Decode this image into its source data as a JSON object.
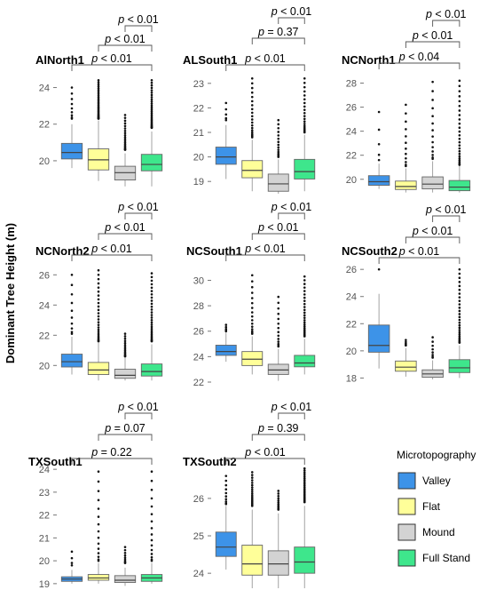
{
  "y_axis_title": "Dominant Tree Height (m)",
  "legend": {
    "title": "Microtopography",
    "items": [
      {
        "label": "Valley",
        "color": "#3d93e8"
      },
      {
        "label": "Flat",
        "color": "#ffff99"
      },
      {
        "label": "Mound",
        "color": "#d3d3d3"
      },
      {
        "label": "Full Stand",
        "color": "#3ee68c"
      }
    ]
  },
  "chart_data": [
    {
      "type": "box",
      "title": "AlNorth1",
      "ylim": [
        18.2,
        24.9
      ],
      "yticks": [
        20,
        22,
        24
      ],
      "comparisons": [
        {
          "pair": [
            "Mound",
            "Full Stand"
          ],
          "label": "p < 0.01"
        },
        {
          "pair": [
            "Flat",
            "Full Stand"
          ],
          "label": "p < 0.01"
        },
        {
          "pair": [
            "Valley",
            "Full Stand"
          ],
          "label": "p < 0.01"
        }
      ],
      "series": [
        {
          "name": "Valley",
          "q1": 20.1,
          "median": 20.45,
          "q3": 20.95,
          "wlow": 19.6,
          "whigh": 22.0,
          "outlier_min": 22.3,
          "outlier_max": 24.0,
          "outlier_count": 9
        },
        {
          "name": "Flat",
          "q1": 19.5,
          "median": 20.05,
          "q3": 20.65,
          "wlow": 18.9,
          "whigh": 22.2,
          "outlier_min": 22.3,
          "outlier_max": 24.4,
          "outlier_count": 30
        },
        {
          "name": "Mound",
          "q1": 18.95,
          "median": 19.35,
          "q3": 19.7,
          "wlow": 18.6,
          "whigh": 20.4,
          "outlier_min": 20.6,
          "outlier_max": 22.5,
          "outlier_count": 20
        },
        {
          "name": "Full Stand",
          "q1": 19.45,
          "median": 19.8,
          "q3": 20.35,
          "wlow": 18.6,
          "whigh": 21.6,
          "outlier_min": 21.8,
          "outlier_max": 24.4,
          "outlier_count": 30
        }
      ]
    },
    {
      "type": "box",
      "title": "ALSouth1",
      "ylim": [
        18.5,
        23.5
      ],
      "yticks": [
        19,
        20,
        21,
        22,
        23
      ],
      "comparisons": [
        {
          "pair": [
            "Mound",
            "Full Stand"
          ],
          "label": "p < 0.01"
        },
        {
          "pair": [
            "Flat",
            "Full Stand"
          ],
          "label": "p = 0.37"
        },
        {
          "pair": [
            "Valley",
            "Full Stand"
          ],
          "label": "p < 0.01"
        }
      ],
      "series": [
        {
          "name": "Valley",
          "q1": 19.7,
          "median": 20.0,
          "q3": 20.4,
          "wlow": 19.1,
          "whigh": 21.3,
          "outlier_min": 21.5,
          "outlier_max": 22.2,
          "outlier_count": 5
        },
        {
          "name": "Flat",
          "q1": 19.15,
          "median": 19.45,
          "q3": 19.85,
          "wlow": 18.6,
          "whigh": 20.7,
          "outlier_min": 20.8,
          "outlier_max": 23.2,
          "outlier_count": 20
        },
        {
          "name": "Mound",
          "q1": 18.6,
          "median": 18.9,
          "q3": 19.3,
          "wlow": 18.5,
          "whigh": 19.9,
          "outlier_min": 20.0,
          "outlier_max": 21.5,
          "outlier_count": 15
        },
        {
          "name": "Full Stand",
          "q1": 19.1,
          "median": 19.4,
          "q3": 19.9,
          "wlow": 18.6,
          "whigh": 20.9,
          "outlier_min": 21.0,
          "outlier_max": 23.2,
          "outlier_count": 20
        }
      ]
    },
    {
      "type": "box",
      "title": "NCNorth1",
      "ylim": [
        18.8,
        29.0
      ],
      "yticks": [
        20,
        22,
        24,
        26,
        28
      ],
      "comparisons": [
        {
          "pair": [
            "Mound",
            "Full Stand"
          ],
          "label": "p < 0.01"
        },
        {
          "pair": [
            "Flat",
            "Full Stand"
          ],
          "label": "p < 0.01"
        },
        {
          "pair": [
            "Valley",
            "Full Stand"
          ],
          "label": "p < 0.04"
        }
      ],
      "series": [
        {
          "name": "Valley",
          "q1": 19.5,
          "median": 19.8,
          "q3": 20.3,
          "wlow": 19.2,
          "whigh": 21.3,
          "outlier_min": 21.6,
          "outlier_max": 25.6,
          "outlier_count": 5
        },
        {
          "name": "Flat",
          "q1": 19.15,
          "median": 19.4,
          "q3": 19.85,
          "wlow": 18.9,
          "whigh": 20.9,
          "outlier_min": 21.1,
          "outlier_max": 26.2,
          "outlier_count": 12
        },
        {
          "name": "Mound",
          "q1": 19.2,
          "median": 19.6,
          "q3": 20.2,
          "wlow": 18.9,
          "whigh": 21.5,
          "outlier_min": 21.7,
          "outlier_max": 28.1,
          "outlier_count": 14
        },
        {
          "name": "Full Stand",
          "q1": 19.05,
          "median": 19.35,
          "q3": 19.9,
          "wlow": 18.9,
          "whigh": 21.1,
          "outlier_min": 21.2,
          "outlier_max": 28.2,
          "outlier_count": 26
        }
      ]
    },
    {
      "type": "box",
      "title": "NCNorth2",
      "ylim": [
        18.9,
        26.9
      ],
      "yticks": [
        20,
        22,
        24,
        26
      ],
      "comparisons": [
        {
          "pair": [
            "Mound",
            "Full Stand"
          ],
          "label": "p < 0.01"
        },
        {
          "pair": [
            "Flat",
            "Full Stand"
          ],
          "label": "p < 0.01"
        },
        {
          "pair": [
            "Valley",
            "Full Stand"
          ],
          "label": "p < 0.01"
        }
      ],
      "series": [
        {
          "name": "Valley",
          "q1": 19.9,
          "median": 20.25,
          "q3": 20.75,
          "wlow": 19.4,
          "whigh": 21.9,
          "outlier_min": 22.1,
          "outlier_max": 26.0,
          "outlier_count": 10
        },
        {
          "name": "Flat",
          "q1": 19.4,
          "median": 19.7,
          "q3": 20.2,
          "wlow": 19.0,
          "whigh": 21.5,
          "outlier_min": 21.6,
          "outlier_max": 26.3,
          "outlier_count": 26
        },
        {
          "name": "Mound",
          "q1": 19.15,
          "median": 19.35,
          "q3": 19.75,
          "wlow": 19.0,
          "whigh": 20.5,
          "outlier_min": 20.6,
          "outlier_max": 22.1,
          "outlier_count": 15
        },
        {
          "name": "Full Stand",
          "q1": 19.3,
          "median": 19.6,
          "q3": 20.1,
          "wlow": 19.0,
          "whigh": 21.4,
          "outlier_min": 21.6,
          "outlier_max": 26.1,
          "outlier_count": 30
        }
      ]
    },
    {
      "type": "box",
      "title": "NCSouth1",
      "ylim": [
        22.0,
        31.5
      ],
      "yticks": [
        22,
        24,
        26,
        28,
        30
      ],
      "comparisons": [
        {
          "pair": [
            "Mound",
            "Full Stand"
          ],
          "label": "p < 0.01"
        },
        {
          "pair": [
            "Flat",
            "Full Stand"
          ],
          "label": "p < 0.01"
        },
        {
          "pair": [
            "Valley",
            "Full Stand"
          ],
          "label": "p < 0.01"
        }
      ],
      "series": [
        {
          "name": "Valley",
          "q1": 24.1,
          "median": 24.4,
          "q3": 24.9,
          "wlow": 23.6,
          "whigh": 25.9,
          "outlier_min": 26.0,
          "outlier_max": 26.5,
          "outlier_count": 5
        },
        {
          "name": "Flat",
          "q1": 23.3,
          "median": 23.8,
          "q3": 24.4,
          "wlow": 22.6,
          "whigh": 25.6,
          "outlier_min": 25.8,
          "outlier_max": 30.4,
          "outlier_count": 16
        },
        {
          "name": "Mound",
          "q1": 22.6,
          "median": 22.95,
          "q3": 23.4,
          "wlow": 22.1,
          "whigh": 24.6,
          "outlier_min": 24.8,
          "outlier_max": 28.7,
          "outlier_count": 14
        },
        {
          "name": "Full Stand",
          "q1": 23.2,
          "median": 23.5,
          "q3": 24.1,
          "wlow": 22.6,
          "whigh": 25.4,
          "outlier_min": 25.6,
          "outlier_max": 30.3,
          "outlier_count": 26
        }
      ]
    },
    {
      "type": "box",
      "title": "NCSouth2",
      "ylim": [
        17.7,
        26.6
      ],
      "yticks": [
        18,
        20,
        22,
        24,
        26
      ],
      "comparisons": [
        {
          "pair": [
            "Mound",
            "Full Stand"
          ],
          "label": "p < 0.01"
        },
        {
          "pair": [
            "Flat",
            "Full Stand"
          ],
          "label": "p < 0.01"
        },
        {
          "pair": [
            "Valley",
            "Full Stand"
          ],
          "label": "p < 0.01"
        }
      ],
      "series": [
        {
          "name": "Valley",
          "q1": 19.9,
          "median": 20.4,
          "q3": 21.9,
          "wlow": 18.7,
          "whigh": 24.2,
          "outlier_min": 26.0,
          "outlier_max": 26.0,
          "outlier_count": 1
        },
        {
          "name": "Flat",
          "q1": 18.5,
          "median": 18.8,
          "q3": 19.25,
          "wlow": 18.1,
          "whigh": 20.2,
          "outlier_min": 20.4,
          "outlier_max": 20.8,
          "outlier_count": 5
        },
        {
          "name": "Mound",
          "q1": 18.05,
          "median": 18.3,
          "q3": 18.6,
          "wlow": 17.9,
          "whigh": 19.3,
          "outlier_min": 19.5,
          "outlier_max": 21.0,
          "outlier_count": 8
        },
        {
          "name": "Full Stand",
          "q1": 18.4,
          "median": 18.75,
          "q3": 19.35,
          "wlow": 18.0,
          "whigh": 20.4,
          "outlier_min": 20.6,
          "outlier_max": 26.0,
          "outlier_count": 28
        }
      ]
    },
    {
      "type": "box",
      "title": "TXSouth1",
      "ylim": [
        18.8,
        24.2
      ],
      "yticks": [
        19,
        20,
        21,
        22,
        23,
        24
      ],
      "comparisons": [
        {
          "pair": [
            "Mound",
            "Full Stand"
          ],
          "label": "p < 0.01"
        },
        {
          "pair": [
            "Flat",
            "Full Stand"
          ],
          "label": "p = 0.07"
        },
        {
          "pair": [
            "Valley",
            "Full Stand"
          ],
          "label": "p = 0.22"
        }
      ],
      "series": [
        {
          "name": "Valley",
          "q1": 19.1,
          "median": 19.2,
          "q3": 19.3,
          "wlow": 19.0,
          "whigh": 19.6,
          "outlier_min": 19.8,
          "outlier_max": 20.4,
          "outlier_count": 4
        },
        {
          "name": "Flat",
          "q1": 19.15,
          "median": 19.25,
          "q3": 19.4,
          "wlow": 19.0,
          "whigh": 19.9,
          "outlier_min": 20.0,
          "outlier_max": 23.9,
          "outlier_count": 15
        },
        {
          "name": "Mound",
          "q1": 19.05,
          "median": 19.15,
          "q3": 19.35,
          "wlow": 18.9,
          "whigh": 19.7,
          "outlier_min": 19.9,
          "outlier_max": 20.6,
          "outlier_count": 9
        },
        {
          "name": "Full Stand",
          "q1": 19.1,
          "median": 19.25,
          "q3": 19.4,
          "wlow": 19.0,
          "whigh": 19.9,
          "outlier_min": 20.0,
          "outlier_max": 23.9,
          "outlier_count": 16
        }
      ]
    },
    {
      "type": "box",
      "title": "TXSouth2",
      "ylim": [
        23.6,
        26.9
      ],
      "yticks": [
        24,
        25,
        26
      ],
      "comparisons": [
        {
          "pair": [
            "Mound",
            "Full Stand"
          ],
          "label": "p < 0.01"
        },
        {
          "pair": [
            "Flat",
            "Full Stand"
          ],
          "label": "p = 0.39"
        },
        {
          "pair": [
            "Valley",
            "Full Stand"
          ],
          "label": "p < 0.01"
        }
      ],
      "series": [
        {
          "name": "Valley",
          "q1": 24.45,
          "median": 24.7,
          "q3": 25.1,
          "wlow": 24.1,
          "whigh": 25.8,
          "outlier_min": 25.85,
          "outlier_max": 26.6,
          "outlier_count": 10
        },
        {
          "name": "Flat",
          "q1": 23.95,
          "median": 24.25,
          "q3": 24.75,
          "wlow": 23.6,
          "whigh": 25.7,
          "outlier_min": 25.8,
          "outlier_max": 26.7,
          "outlier_count": 20
        },
        {
          "name": "Mound",
          "q1": 23.95,
          "median": 24.25,
          "q3": 24.6,
          "wlow": 23.6,
          "whigh": 25.6,
          "outlier_min": 25.7,
          "outlier_max": 26.2,
          "outlier_count": 12
        },
        {
          "name": "Full Stand",
          "q1": 24.0,
          "median": 24.3,
          "q3": 24.7,
          "wlow": 23.6,
          "whigh": 25.8,
          "outlier_min": 25.9,
          "outlier_max": 26.8,
          "outlier_count": 26
        }
      ]
    }
  ]
}
